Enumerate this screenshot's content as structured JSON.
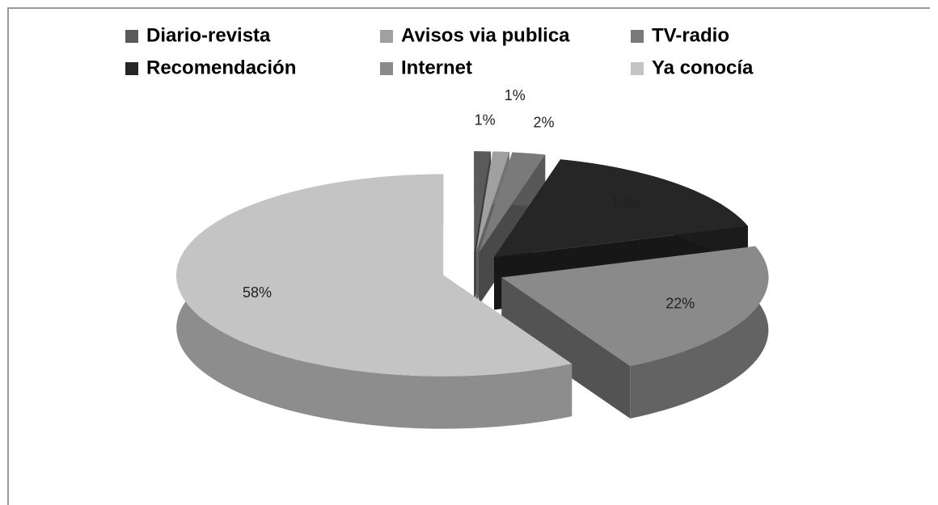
{
  "chart_data": {
    "type": "pie",
    "categories": [
      "Diario-revista",
      "Avisos via publica",
      "TV-radio",
      "Recomendación",
      "Internet",
      "Ya conocía"
    ],
    "values": [
      1,
      1,
      2,
      16,
      22,
      58
    ],
    "value_labels": [
      "1%",
      "1%",
      "2%",
      "16%",
      "22%",
      "58%"
    ],
    "colors": [
      "#5a5a5a",
      "#a0a0a0",
      "#7a7a7a",
      "#262626",
      "#8a8a8a",
      "#c4c4c4"
    ],
    "legend": "top"
  }
}
